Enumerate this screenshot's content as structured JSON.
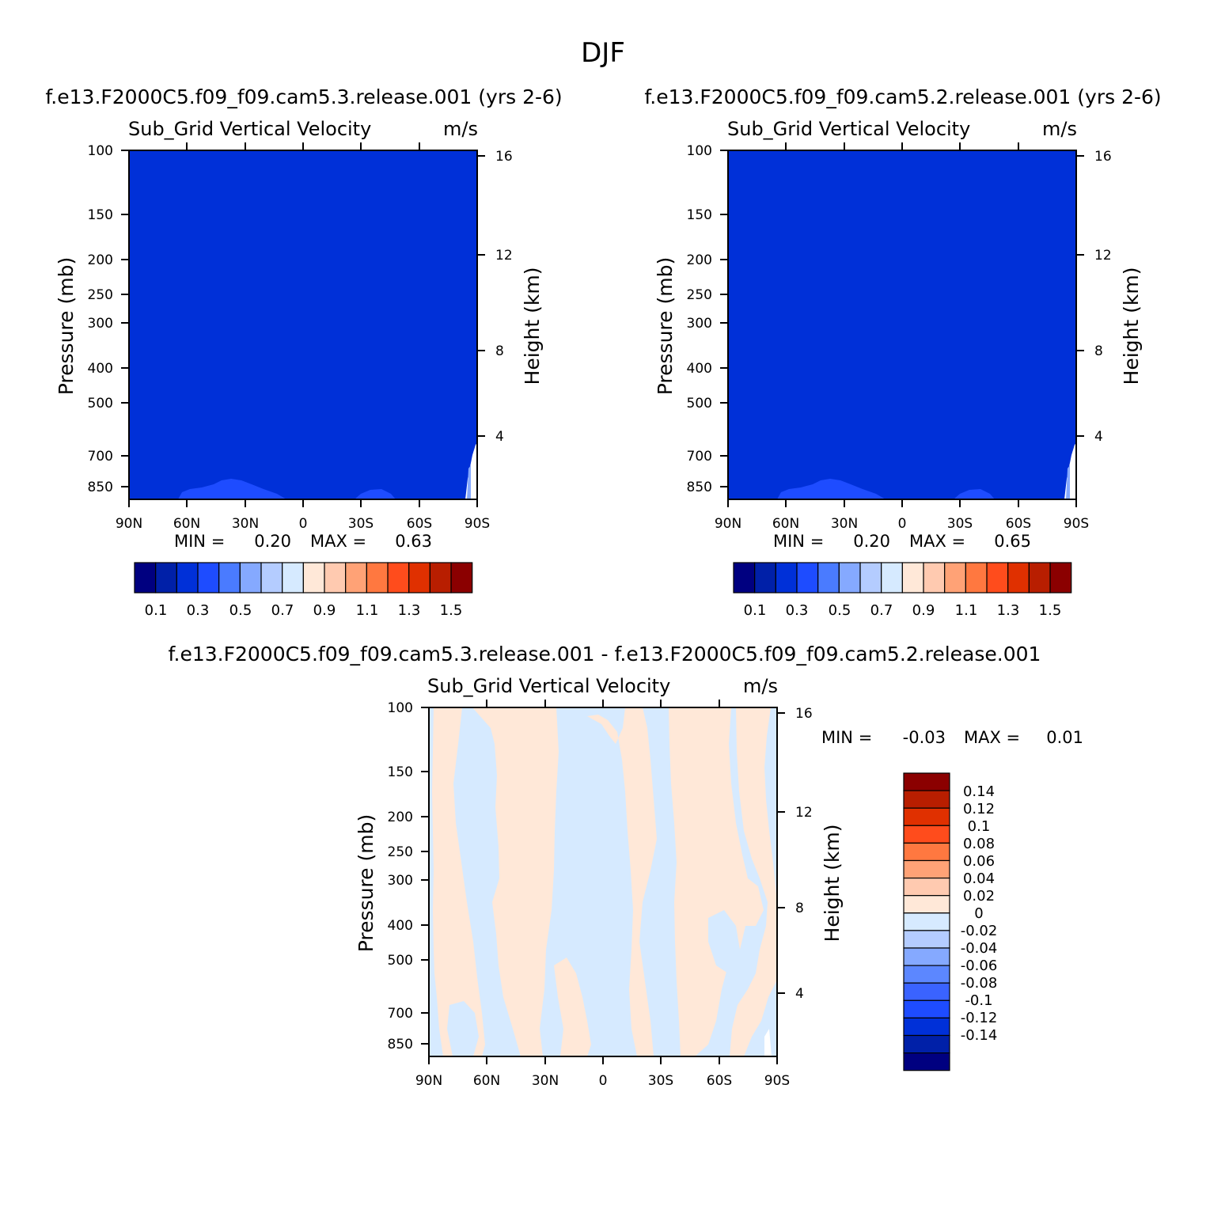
{
  "figure": {
    "title": "DJF"
  },
  "colors": {
    "abs_palette": [
      "#000080",
      "#0020a8",
      "#0030d8",
      "#1e4cff",
      "#4a7bff",
      "#85a9ff",
      "#b4ccff",
      "#d6eaff",
      "#ffe8d8",
      "#ffcab0",
      "#ffa276",
      "#ff7840",
      "#ff4c1c",
      "#e03000",
      "#b81e00",
      "#8b0000"
    ],
    "diff_palette": [
      "#000080",
      "#0020a8",
      "#0030d8",
      "#1e4cff",
      "#3a63ff",
      "#5c87ff",
      "#85a9ff",
      "#b4ccff",
      "#d6eaff",
      "#ffe8d8",
      "#ffcab0",
      "#ffa276",
      "#ff7840",
      "#ff4c1c",
      "#e03000",
      "#b81e00",
      "#8b0000"
    ]
  },
  "chart_data": [
    {
      "type": "heatmap",
      "title": "f.e13.F2000C5.f09_f09.cam5.3.release.001  (yrs 2-6)",
      "subtitle_left": "Sub_Grid Vertical Velocity",
      "subtitle_right": "m/s",
      "ylabel": "Pressure (mb)",
      "ylabel_right": "Height (km)",
      "x_ticks": [
        "90N",
        "60N",
        "30N",
        "0",
        "30S",
        "60S",
        "90S"
      ],
      "y_ticks": [
        "100",
        "150",
        "200",
        "250",
        "300",
        "400",
        "500",
        "700",
        "850"
      ],
      "y2_ticks": [
        "16",
        "12",
        "8",
        "4"
      ],
      "stats": {
        "min_label": "MIN =",
        "min": "0.20",
        "max_label": "MAX =",
        "max": "0.63"
      },
      "colorbar_labels": [
        "0.1",
        "0.3",
        "0.5",
        "0.7",
        "0.9",
        "1.1",
        "1.3",
        "1.5"
      ],
      "dominant_level": "0.3 to 0.4"
    },
    {
      "type": "heatmap",
      "title": "f.e13.F2000C5.f09_f09.cam5.2.release.001  (yrs 2-6)",
      "subtitle_left": "Sub_Grid Vertical Velocity",
      "subtitle_right": "m/s",
      "ylabel": "Pressure (mb)",
      "ylabel_right": "Height (km)",
      "x_ticks": [
        "90N",
        "60N",
        "30N",
        "0",
        "30S",
        "60S",
        "90S"
      ],
      "y_ticks": [
        "100",
        "150",
        "200",
        "250",
        "300",
        "400",
        "500",
        "700",
        "850"
      ],
      "y2_ticks": [
        "16",
        "12",
        "8",
        "4"
      ],
      "stats": {
        "min_label": "MIN =",
        "min": "0.20",
        "max_label": "MAX =",
        "max": "0.65"
      },
      "colorbar_labels": [
        "0.1",
        "0.3",
        "0.5",
        "0.7",
        "0.9",
        "1.1",
        "1.3",
        "1.5"
      ],
      "dominant_level": "0.3 to 0.4"
    },
    {
      "type": "heatmap",
      "title": "f.e13.F2000C5.f09_f09.cam5.3.release.001 - f.e13.F2000C5.f09_f09.cam5.2.release.001",
      "subtitle_left": "Sub_Grid Vertical Velocity",
      "subtitle_right": "m/s",
      "ylabel": "Pressure (mb)",
      "ylabel_right": "Height (km)",
      "x_ticks": [
        "90N",
        "60N",
        "30N",
        "0",
        "30S",
        "60S",
        "90S"
      ],
      "y_ticks": [
        "100",
        "150",
        "200",
        "250",
        "300",
        "400",
        "500",
        "700",
        "850"
      ],
      "y2_ticks": [
        "16",
        "12",
        "8",
        "4"
      ],
      "stats": {
        "min_label": "MIN =",
        "min": "-0.03",
        "max_label": "MAX =",
        "max": "0.01"
      },
      "colorbar_labels": [
        "0.14",
        "0.12",
        "0.1",
        "0.08",
        "0.06",
        "0.04",
        "0.02",
        "0",
        "-0.02",
        "-0.04",
        "-0.06",
        "-0.08",
        "-0.1",
        "-0.12",
        "-0.14"
      ],
      "dominant_levels": [
        "-0.02 to 0",
        "0 to 0.02"
      ]
    }
  ]
}
